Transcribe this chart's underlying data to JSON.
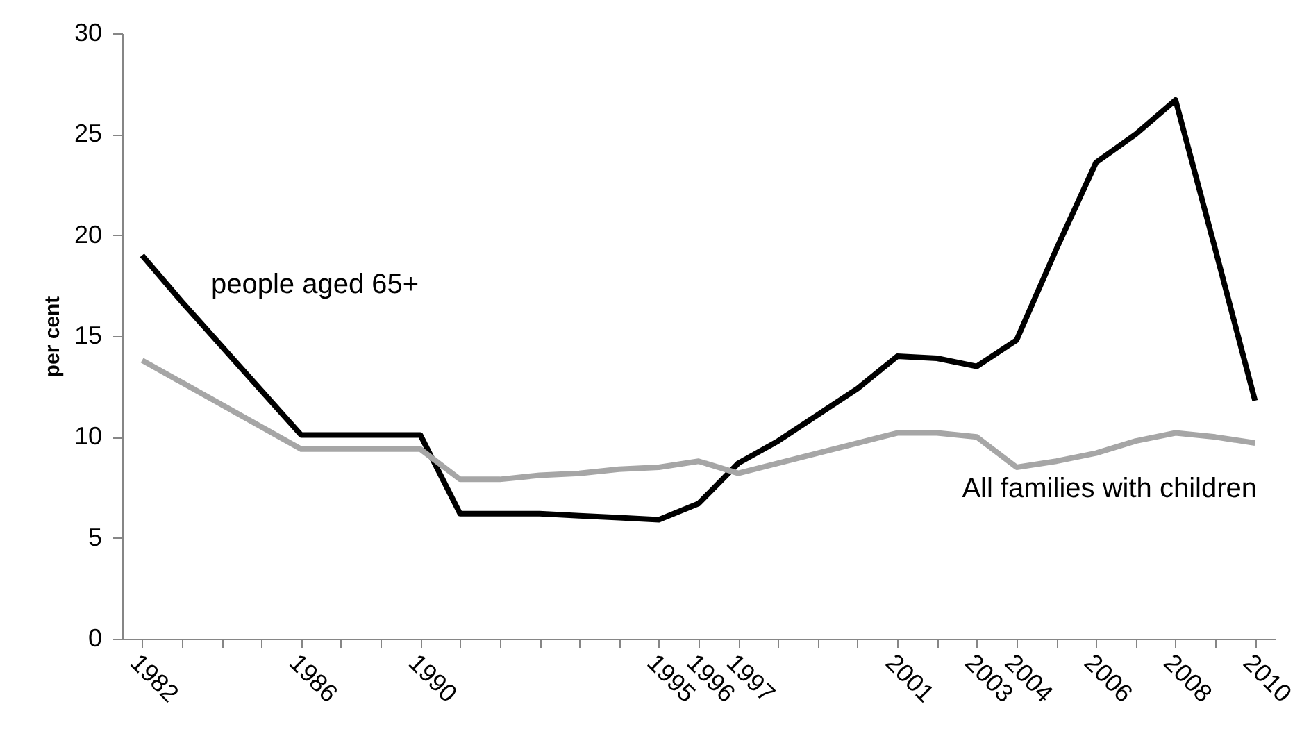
{
  "chart_data": {
    "type": "line",
    "ylabel": "per cent",
    "categories": [
      "1982",
      null,
      null,
      null,
      "1986",
      null,
      null,
      "1990",
      null,
      null,
      null,
      null,
      null,
      "1995",
      "1996",
      "1997",
      null,
      null,
      null,
      "2001",
      null,
      "2003",
      "2004",
      null,
      "2006",
      null,
      "2008",
      null,
      "2010"
    ],
    "series": [
      {
        "name": "people aged 65+",
        "color": "#000000",
        "values": [
          19.0,
          16.7,
          14.5,
          12.3,
          10.1,
          10.1,
          10.1,
          10.1,
          6.2,
          6.2,
          6.2,
          6.1,
          6.0,
          5.9,
          6.7,
          8.7,
          9.8,
          11.1,
          12.4,
          14.0,
          13.9,
          13.5,
          14.8,
          19.3,
          23.6,
          25.0,
          26.7,
          19.3,
          11.8
        ]
      },
      {
        "name": "All families with children",
        "color": "#a6a6a6",
        "values": [
          13.8,
          12.7,
          11.6,
          10.5,
          9.4,
          9.4,
          9.4,
          9.4,
          7.9,
          7.9,
          8.1,
          8.2,
          8.4,
          8.5,
          8.8,
          8.2,
          8.7,
          9.2,
          9.7,
          10.2,
          10.2,
          10.0,
          8.5,
          8.8,
          9.2,
          9.8,
          10.2,
          10.0,
          9.7
        ]
      }
    ],
    "ylim": [
      0,
      30
    ],
    "yticks": [
      0,
      5,
      10,
      15,
      20,
      25,
      30
    ]
  }
}
